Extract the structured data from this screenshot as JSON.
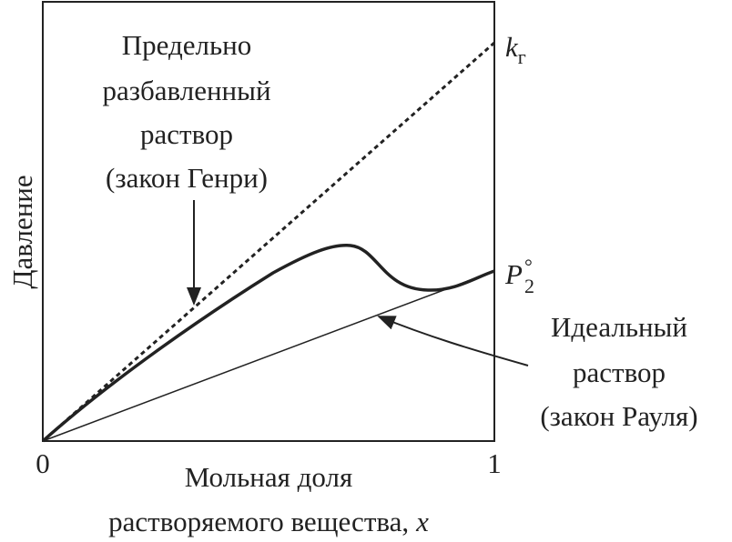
{
  "y_axis_label": "Давление",
  "x_axis_label": {
    "lines": [
      "Мольная доля",
      "растворяемого вещества,"
    ],
    "variable": "x"
  },
  "ticks": {
    "start": "0",
    "end": "1"
  },
  "henry_label": {
    "lines": [
      "Предельно",
      "разбавленный",
      "раствор",
      "(закон Генри)"
    ]
  },
  "raoult_label": {
    "lines": [
      "Идеальный",
      "раствор",
      "(закон Рауля)"
    ]
  },
  "henry_constant": {
    "symbol": "k",
    "subscript": "г"
  },
  "pure_pressure": {
    "symbol": "P",
    "subscript": "2",
    "superscript": "°"
  }
}
